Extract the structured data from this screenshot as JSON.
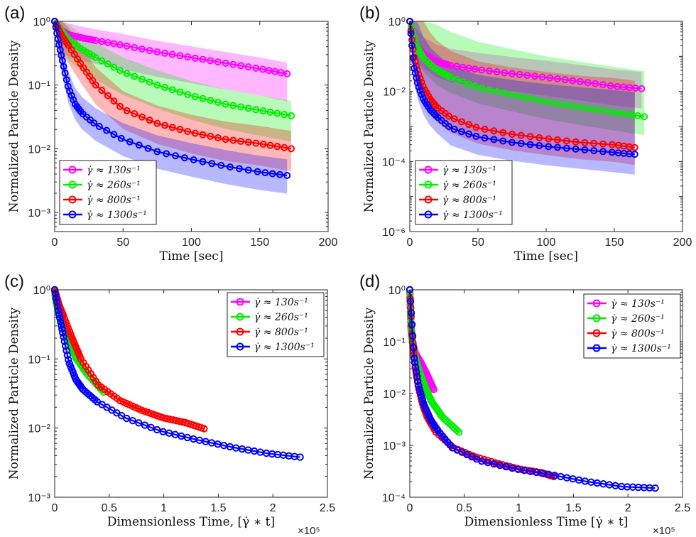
{
  "colors": {
    "magenta": "#ff00ff",
    "green": "#00ee00",
    "red": "#ff0000",
    "blue": "#0000ff"
  },
  "legend": [
    {
      "label": "γ̇ ≈ 130s⁻¹",
      "color": "#ff00ff"
    },
    {
      "label": "γ̇ ≈ 260s⁻¹",
      "color": "#00ee00"
    },
    {
      "label": "γ̇ ≈ 800s⁻¹",
      "color": "#ff0000"
    },
    {
      "label": "γ̇ ≈ 1300s⁻¹",
      "color": "#0000ff"
    }
  ],
  "chart_data": [
    {
      "panel": "(a)",
      "type": "line",
      "log_y": true,
      "xlabel": "Time [sec]",
      "ylabel": "Normalized Particle Density",
      "xlim": [
        0,
        200
      ],
      "ylim": [
        0.0005,
        1
      ],
      "xticks": [
        0,
        50,
        100,
        150,
        200
      ],
      "yticks": [
        {
          "v": 0.001,
          "t": "10⁻³"
        },
        {
          "v": 0.01,
          "t": "10⁻²"
        },
        {
          "v": 0.1,
          "t": "10⁻¹"
        },
        {
          "v": 1,
          "t": "10⁰"
        }
      ],
      "legend_position": "bottom-left",
      "series": [
        {
          "name": "γ̇ ≈ 130s⁻¹",
          "color": "#ff00ff",
          "x": [
            0,
            5,
            10,
            20,
            30,
            50,
            75,
            100,
            125,
            150,
            170
          ],
          "y": [
            1,
            0.72,
            0.62,
            0.55,
            0.5,
            0.42,
            0.33,
            0.27,
            0.22,
            0.18,
            0.15
          ]
        },
        {
          "name": "γ̇ ≈ 260s⁻¹",
          "color": "#00ee00",
          "x": [
            0,
            5,
            10,
            20,
            30,
            50,
            75,
            100,
            125,
            150,
            173
          ],
          "y": [
            1,
            0.7,
            0.52,
            0.36,
            0.27,
            0.16,
            0.1,
            0.068,
            0.05,
            0.04,
            0.033
          ]
        },
        {
          "name": "γ̇ ≈ 800s⁻¹",
          "color": "#ff0000",
          "x": [
            0,
            5,
            10,
            20,
            30,
            50,
            75,
            100,
            125,
            150,
            173
          ],
          "y": [
            1,
            0.6,
            0.42,
            0.2,
            0.1,
            0.042,
            0.025,
            0.018,
            0.014,
            0.012,
            0.01
          ]
        },
        {
          "name": "γ̇ ≈ 1300s⁻¹",
          "color": "#0000ff",
          "x": [
            0,
            3,
            6,
            10,
            15,
            20,
            30,
            50,
            75,
            100,
            125,
            150,
            170
          ],
          "y": [
            1,
            0.45,
            0.22,
            0.09,
            0.05,
            0.036,
            0.024,
            0.014,
            0.009,
            0.0068,
            0.0053,
            0.0043,
            0.0038
          ]
        }
      ]
    },
    {
      "panel": "(b)",
      "type": "line",
      "log_y": true,
      "xlabel": "Time [sec]",
      "ylabel": "Normalized Particle Density",
      "xlim": [
        0,
        200
      ],
      "ylim": [
        1e-06,
        1
      ],
      "xticks": [
        0,
        50,
        100,
        150,
        200
      ],
      "yticks": [
        {
          "v": 1e-06,
          "t": "10⁻⁶"
        },
        {
          "v": 0.0001,
          "t": "10⁻⁴"
        },
        {
          "v": 0.01,
          "t": "10⁻²"
        },
        {
          "v": 1,
          "t": "10⁰"
        }
      ],
      "legend_position": "bottom-left",
      "series": [
        {
          "name": "γ̇ ≈ 130s⁻¹",
          "color": "#ff00ff",
          "x": [
            0,
            5,
            10,
            20,
            30,
            50,
            75,
            100,
            125,
            150,
            170
          ],
          "y": [
            1,
            0.2,
            0.12,
            0.07,
            0.055,
            0.042,
            0.032,
            0.025,
            0.019,
            0.014,
            0.012
          ]
        },
        {
          "name": "γ̇ ≈ 260s⁻¹",
          "color": "#00ee00",
          "x": [
            0,
            5,
            10,
            20,
            30,
            50,
            75,
            100,
            125,
            150,
            172
          ],
          "y": [
            1,
            0.2,
            0.09,
            0.04,
            0.025,
            0.013,
            0.008,
            0.005,
            0.0035,
            0.0025,
            0.0019
          ]
        },
        {
          "name": "γ̇ ≈ 800s⁻¹",
          "color": "#ff0000",
          "x": [
            0,
            3,
            6,
            10,
            15,
            20,
            30,
            50,
            75,
            100,
            125,
            150,
            165
          ],
          "y": [
            1,
            0.1,
            0.035,
            0.013,
            0.006,
            0.0035,
            0.0018,
            0.0009,
            0.0006,
            0.00045,
            0.00035,
            0.0003,
            0.00025
          ]
        },
        {
          "name": "γ̇ ≈ 1300s⁻¹",
          "color": "#0000ff",
          "x": [
            0,
            3,
            6,
            10,
            15,
            20,
            30,
            50,
            75,
            100,
            125,
            150,
            165
          ],
          "y": [
            1,
            0.05,
            0.015,
            0.006,
            0.003,
            0.0019,
            0.0009,
            0.0005,
            0.00035,
            0.00027,
            0.00022,
            0.00018,
            0.00016
          ]
        }
      ]
    },
    {
      "panel": "(c)",
      "type": "line",
      "log_y": true,
      "xlabel": "Dimensionless Time, [γ̇ ∗ t]",
      "ylabel": "Normalized Particle Density",
      "x_multiplier": "×10⁵",
      "xlim": [
        0,
        250000
      ],
      "ylim": [
        0.001,
        1
      ],
      "xticks": [
        {
          "v": 0,
          "t": "0"
        },
        {
          "v": 50000,
          "t": "0.5"
        },
        {
          "v": 100000,
          "t": "1"
        },
        {
          "v": 150000,
          "t": "1.5"
        },
        {
          "v": 200000,
          "t": "2"
        },
        {
          "v": 250000,
          "t": "2.5"
        }
      ],
      "yticks": [
        {
          "v": 0.001,
          "t": "10⁻³"
        },
        {
          "v": 0.01,
          "t": "10⁻²"
        },
        {
          "v": 0.1,
          "t": "10⁻¹"
        },
        {
          "v": 1,
          "t": "10⁰"
        }
      ],
      "legend_position": "top-right",
      "series": [
        {
          "name": "γ̇ ≈ 130s⁻¹",
          "color": "#ff00ff",
          "x": [
            0,
            1000,
            3000,
            6000,
            10000,
            15000,
            22000
          ],
          "y": [
            1,
            0.72,
            0.55,
            0.4,
            0.28,
            0.18,
            0.12
          ]
        },
        {
          "name": "γ̇ ≈ 260s⁻¹",
          "color": "#00ee00",
          "x": [
            0,
            1300,
            3000,
            6000,
            10000,
            15000,
            20000,
            30000,
            45000
          ],
          "y": [
            1,
            0.7,
            0.5,
            0.36,
            0.25,
            0.15,
            0.1,
            0.06,
            0.033
          ]
        },
        {
          "name": "γ̇ ≈ 800s⁻¹",
          "color": "#ff0000",
          "x": [
            0,
            4000,
            8000,
            16000,
            24000,
            40000,
            60000,
            80000,
            100000,
            120000,
            137000
          ],
          "y": [
            1,
            0.6,
            0.42,
            0.2,
            0.1,
            0.042,
            0.025,
            0.018,
            0.014,
            0.012,
            0.0098
          ]
        },
        {
          "name": "γ̇ ≈ 1300s⁻¹",
          "color": "#0000ff",
          "x": [
            0,
            3900,
            7800,
            13000,
            19500,
            26000,
            39000,
            65000,
            97500,
            130000,
            162500,
            195000,
            225000
          ],
          "y": [
            1,
            0.45,
            0.22,
            0.09,
            0.05,
            0.036,
            0.024,
            0.014,
            0.009,
            0.0068,
            0.0053,
            0.0043,
            0.0038
          ]
        }
      ]
    },
    {
      "panel": "(d)",
      "type": "line",
      "log_y": true,
      "xlabel": "Dimensionless Time [γ̇ ∗ t]",
      "ylabel": "Normalized Particle Density",
      "x_multiplier": "×10⁵",
      "xlim": [
        0,
        250000
      ],
      "ylim": [
        0.0001,
        1
      ],
      "xticks": [
        {
          "v": 0,
          "t": "0"
        },
        {
          "v": 50000,
          "t": "0.5"
        },
        {
          "v": 100000,
          "t": "1"
        },
        {
          "v": 150000,
          "t": "1.5"
        },
        {
          "v": 200000,
          "t": "2"
        },
        {
          "v": 250000,
          "t": "2.5"
        }
      ],
      "yticks": [
        {
          "v": 0.0001,
          "t": "10⁻⁴"
        },
        {
          "v": 0.001,
          "t": "10⁻³"
        },
        {
          "v": 0.01,
          "t": "10⁻²"
        },
        {
          "v": 0.1,
          "t": "10⁻¹"
        },
        {
          "v": 1,
          "t": "10⁰"
        }
      ],
      "legend_position": "top-right",
      "series": [
        {
          "name": "γ̇ ≈ 130s⁻¹",
          "color": "#ff00ff",
          "x": [
            0,
            1000,
            2000,
            4000,
            6000,
            10000,
            15000,
            22000
          ],
          "y": [
            1,
            0.2,
            0.12,
            0.07,
            0.055,
            0.04,
            0.025,
            0.012
          ]
        },
        {
          "name": "γ̇ ≈ 260s⁻¹",
          "color": "#00ee00",
          "x": [
            0,
            1300,
            3000,
            6000,
            10000,
            15000,
            20000,
            30000,
            45000
          ],
          "y": [
            1,
            0.2,
            0.08,
            0.04,
            0.022,
            0.012,
            0.007,
            0.0035,
            0.0018
          ]
        },
        {
          "name": "γ̇ ≈ 800s⁻¹",
          "color": "#ff0000",
          "x": [
            0,
            2400,
            4800,
            8000,
            12000,
            16000,
            24000,
            40000,
            60000,
            80000,
            100000,
            120000,
            132000
          ],
          "y": [
            1,
            0.1,
            0.035,
            0.013,
            0.006,
            0.0035,
            0.0018,
            0.0009,
            0.0006,
            0.00045,
            0.00035,
            0.0003,
            0.00025
          ]
        },
        {
          "name": "γ̇ ≈ 1300s⁻¹",
          "color": "#0000ff",
          "x": [
            0,
            3900,
            7800,
            13000,
            19500,
            26000,
            39000,
            65000,
            97500,
            130000,
            162500,
            195000,
            225000
          ],
          "y": [
            1,
            0.05,
            0.015,
            0.006,
            0.003,
            0.0019,
            0.0009,
            0.0005,
            0.00035,
            0.00027,
            0.0002,
            0.00016,
            0.00015
          ]
        }
      ]
    }
  ]
}
